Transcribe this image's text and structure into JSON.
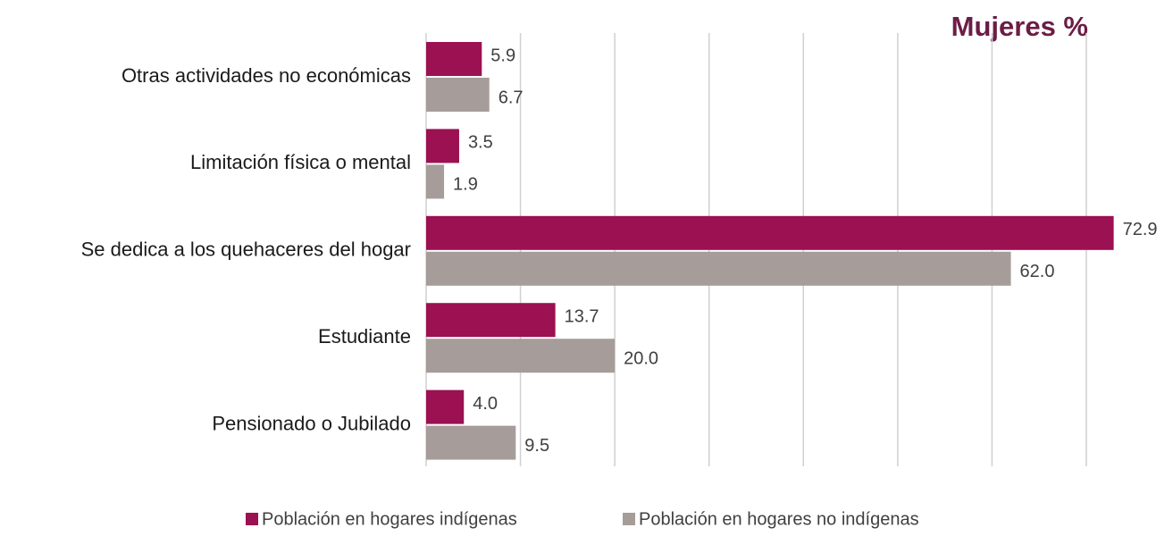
{
  "chart_data": {
    "type": "hbar",
    "title": "Mujeres %",
    "categories": [
      "Otras actividades no económicas",
      "Limitación física o mental",
      "Se dedica a los quehaceres del hogar",
      "Estudiante",
      "Pensionado o Jubilado"
    ],
    "series": [
      {
        "name": "Población en hogares indígenas",
        "color": "#9b1151",
        "values": [
          5.9,
          3.5,
          72.9,
          13.7,
          4.0
        ],
        "value_labels": [
          "5.9",
          "3.5",
          "72.9",
          "13.7",
          "4.0"
        ]
      },
      {
        "name": "Población en hogares no indígenas",
        "color": "#a69c99",
        "values": [
          6.7,
          1.9,
          62.0,
          20.0,
          9.5
        ],
        "value_labels": [
          "6.7",
          "1.9",
          "62.0",
          "20.0",
          "9.5"
        ]
      }
    ],
    "xlim": [
      0,
      75
    ],
    "xticks": [
      0,
      10,
      20,
      30,
      40,
      50,
      60,
      70
    ],
    "grid": true,
    "legend": "bottom"
  }
}
